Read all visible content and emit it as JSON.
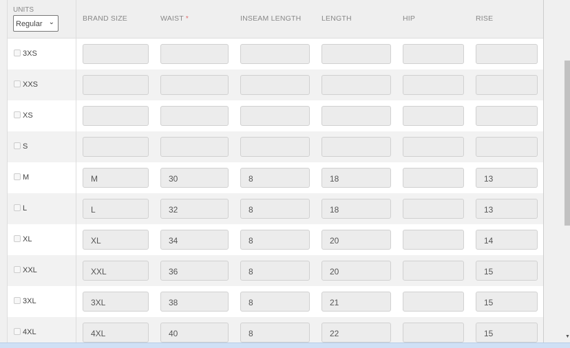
{
  "header": {
    "units_label": "UNITS",
    "units_value": "Regular",
    "columns": [
      "BRAND SIZE",
      "WAIST",
      "INSEAM LENGTH",
      "LENGTH",
      "HIP",
      "RISE"
    ],
    "required_marker": "*"
  },
  "rows": [
    {
      "size": "3XS",
      "values": [
        "",
        "",
        "",
        "",
        "",
        ""
      ]
    },
    {
      "size": "XXS",
      "values": [
        "",
        "",
        "",
        "",
        "",
        ""
      ]
    },
    {
      "size": "XS",
      "values": [
        "",
        "",
        "",
        "",
        "",
        ""
      ]
    },
    {
      "size": "S",
      "values": [
        "",
        "",
        "",
        "",
        "",
        ""
      ]
    },
    {
      "size": "M",
      "values": [
        "M",
        "30",
        "8",
        "18",
        "",
        "13"
      ]
    },
    {
      "size": "L",
      "values": [
        "L",
        "32",
        "8",
        "18",
        "",
        "13"
      ]
    },
    {
      "size": "XL",
      "values": [
        "XL",
        "34",
        "8",
        "20",
        "",
        "14"
      ]
    },
    {
      "size": "XXL",
      "values": [
        "XXL",
        "36",
        "8",
        "20",
        "",
        "15"
      ]
    },
    {
      "size": "3XL",
      "values": [
        "3XL",
        "38",
        "8",
        "21",
        "",
        "15"
      ]
    },
    {
      "size": "4XL",
      "values": [
        "4XL",
        "40",
        "8",
        "22",
        "",
        "15"
      ]
    }
  ]
}
